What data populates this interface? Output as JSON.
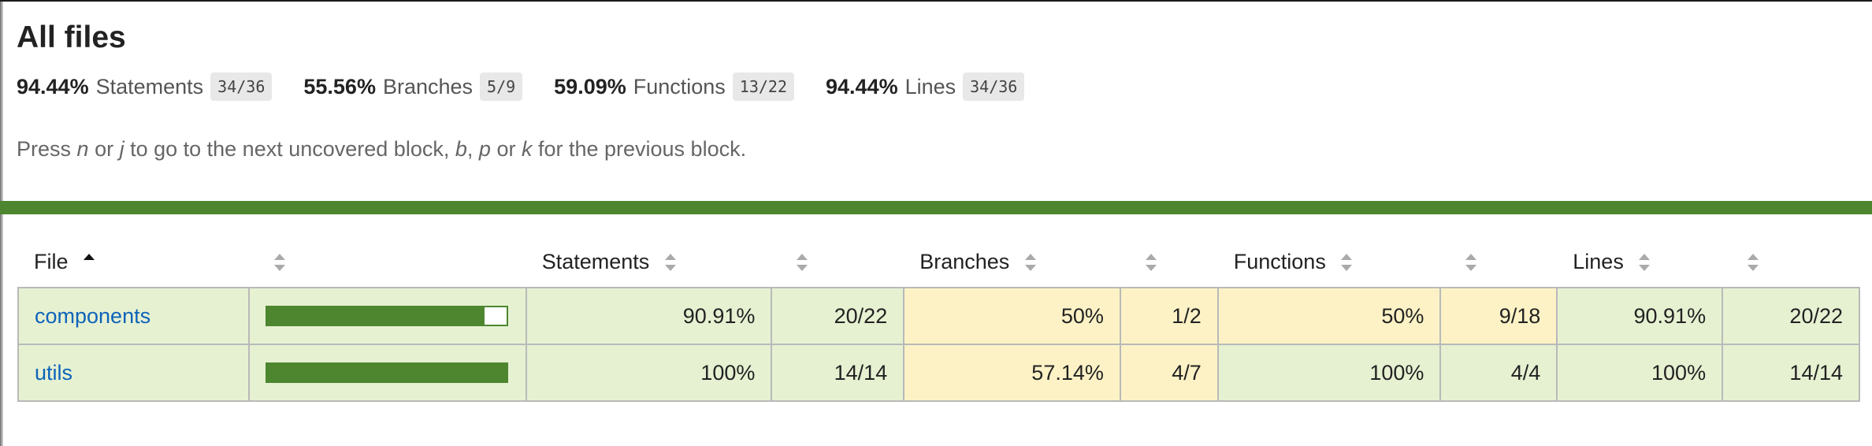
{
  "page": {
    "title": "All files"
  },
  "summary": [
    {
      "pct": "94.44%",
      "label": "Statements",
      "fraction": "34/36"
    },
    {
      "pct": "55.56%",
      "label": "Branches",
      "fraction": "5/9"
    },
    {
      "pct": "59.09%",
      "label": "Functions",
      "fraction": "13/22"
    },
    {
      "pct": "94.44%",
      "label": "Lines",
      "fraction": "34/36"
    }
  ],
  "hint": {
    "part1": "Press ",
    "key_n": "n",
    "part2": " or ",
    "key_j": "j",
    "part3": " to go to the next uncovered block, ",
    "key_b": "b",
    "part4": ", ",
    "key_p": "p",
    "part5": " or ",
    "key_k": "k",
    "part6": " for the previous block."
  },
  "table": {
    "headers": {
      "file": "File",
      "statements": "Statements",
      "branches": "Branches",
      "functions": "Functions",
      "lines": "Lines"
    },
    "rows": [
      {
        "name": "components",
        "coverage_fraction": 0.9091,
        "statements_pct": "90.91%",
        "statements_frac": "20/22",
        "branches_pct": "50%",
        "branches_frac": "1/2",
        "functions_pct": "50%",
        "functions_frac": "9/18",
        "lines_pct": "90.91%",
        "lines_frac": "20/22"
      },
      {
        "name": "utils",
        "coverage_fraction": 1.0,
        "statements_pct": "100%",
        "statements_frac": "14/14",
        "branches_pct": "57.14%",
        "branches_frac": "4/7",
        "functions_pct": "100%",
        "functions_frac": "4/4",
        "lines_pct": "100%",
        "lines_frac": "14/14"
      }
    ]
  },
  "colors": {
    "accent_green": "#4e8630",
    "high_bg": "#e6f1d2",
    "medium_bg": "#fcf2c6",
    "link": "#0d63b9"
  }
}
